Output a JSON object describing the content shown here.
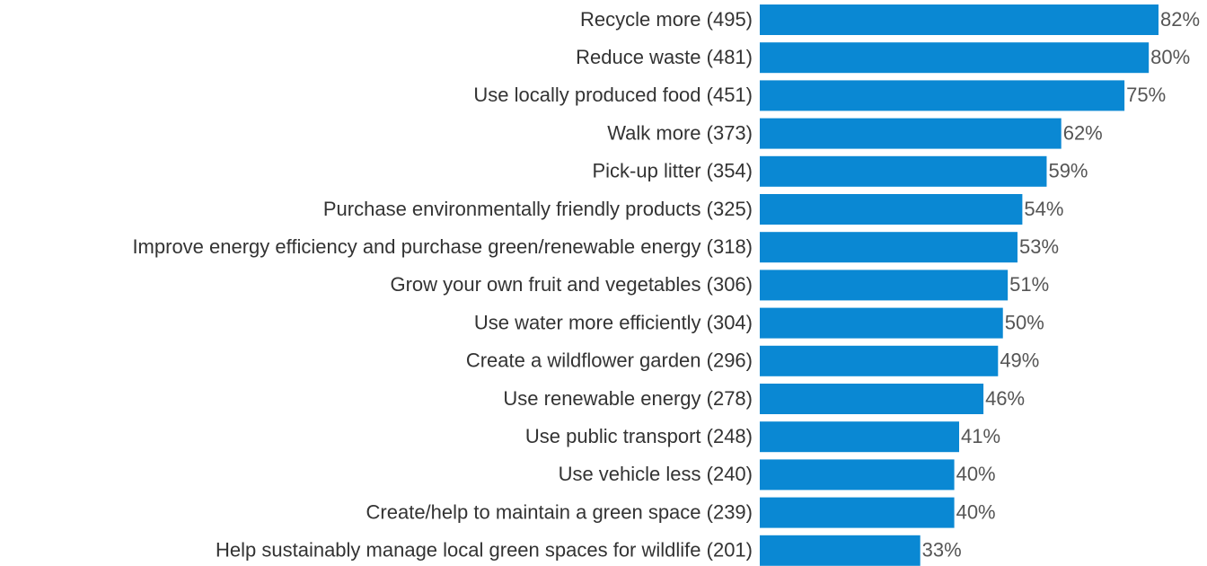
{
  "chart_data": {
    "type": "bar",
    "orientation": "horizontal",
    "categories": [
      "Recycle more (495)",
      "Reduce waste (481)",
      "Use locally produced food  (451)",
      "Walk more (373)",
      "Pick-up litter  (354)",
      "Purchase environmentally friendly products  (325)",
      "Improve energy efficiency and purchase green/renewable energy  (318)",
      "Grow your own fruit and vegetables (306)",
      "Use water more efficiently (304)",
      "Create a wildflower garden (296)",
      "Use renewable energy (278)",
      "Use public transport (248)",
      "Use vehicle less  (240)",
      "Create/help to maintain a green space  (239)",
      "Help sustainably manage local green spaces for wildlife (201)"
    ],
    "values": [
      82,
      80,
      75,
      62,
      59,
      54,
      53,
      51,
      50,
      49,
      46,
      41,
      40,
      40,
      33
    ],
    "value_labels": [
      "82%",
      "80%",
      "75%",
      "62%",
      "59%",
      "54%",
      "53%",
      "51%",
      "50%",
      "49%",
      "46%",
      "41%",
      "40%",
      "40%",
      "33%"
    ],
    "color": "#0a88d3"
  }
}
